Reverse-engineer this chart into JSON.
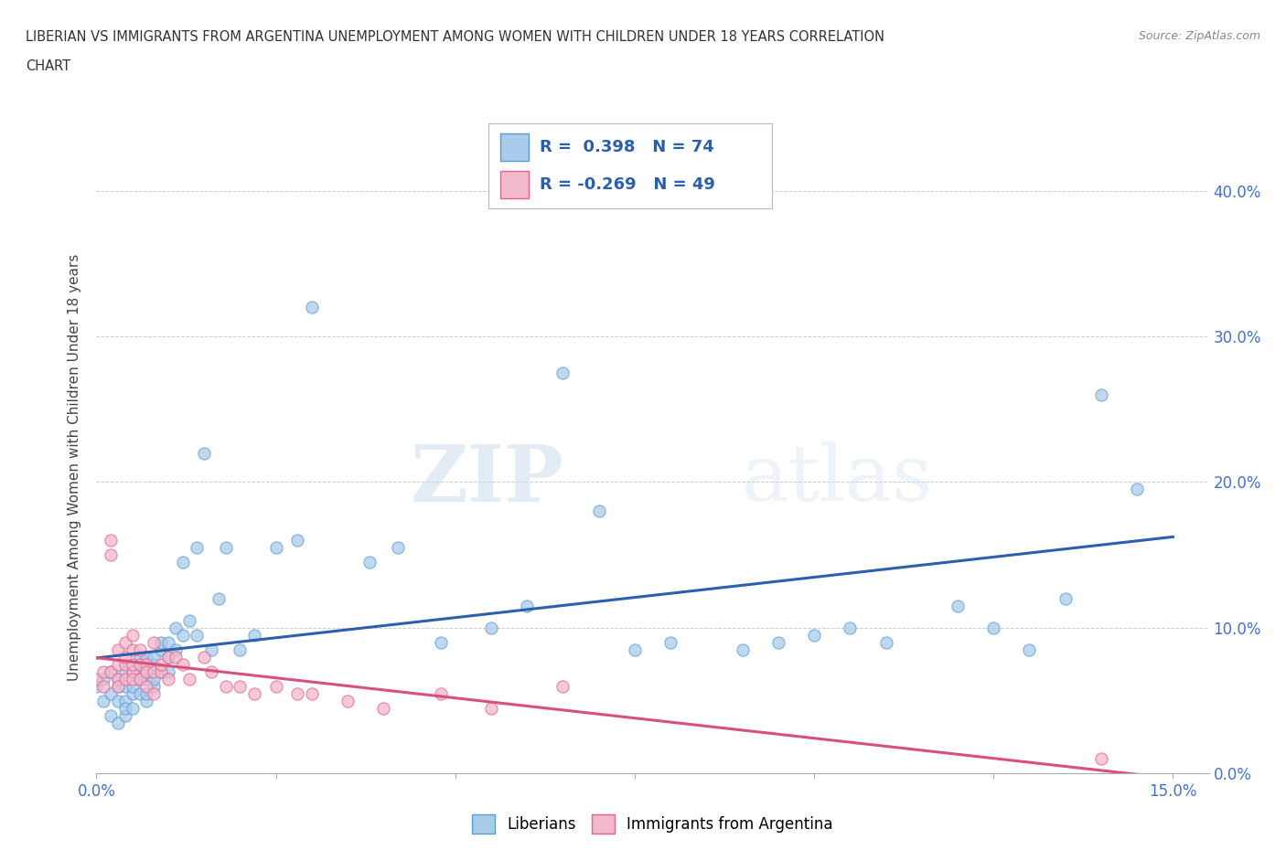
{
  "title_line1": "LIBERIAN VS IMMIGRANTS FROM ARGENTINA UNEMPLOYMENT AMONG WOMEN WITH CHILDREN UNDER 18 YEARS CORRELATION",
  "title_line2": "CHART",
  "source": "Source: ZipAtlas.com",
  "ylabel": "Unemployment Among Women with Children Under 18 years",
  "xlim": [
    0.0,
    0.155
  ],
  "ylim": [
    0.0,
    0.42
  ],
  "xticks": [
    0.0,
    0.025,
    0.05,
    0.075,
    0.1,
    0.125,
    0.15
  ],
  "yticks": [
    0.0,
    0.1,
    0.2,
    0.3,
    0.4
  ],
  "ytick_labels": [
    "0.0%",
    "10.0%",
    "20.0%",
    "30.0%",
    "40.0%"
  ],
  "xtick_labels_show": [
    "0.0%",
    "15.0%"
  ],
  "blue_color": "#A8CCEA",
  "pink_color": "#F2B8CC",
  "blue_edge_color": "#5B9BD5",
  "pink_edge_color": "#E8608A",
  "blue_line_color": "#2E5FAC",
  "pink_line_color": "#D94F7E",
  "blue_R": 0.398,
  "blue_N": 74,
  "pink_R": -0.269,
  "pink_N": 49,
  "watermark_zip": "ZIP",
  "watermark_atlas": "atlas",
  "blue_scatter_x": [
    0.0,
    0.001,
    0.001,
    0.002,
    0.002,
    0.002,
    0.003,
    0.003,
    0.003,
    0.003,
    0.004,
    0.004,
    0.004,
    0.004,
    0.004,
    0.005,
    0.005,
    0.005,
    0.005,
    0.006,
    0.006,
    0.006,
    0.006,
    0.007,
    0.007,
    0.007,
    0.007,
    0.007,
    0.008,
    0.008,
    0.008,
    0.008,
    0.009,
    0.009,
    0.009,
    0.01,
    0.01,
    0.01,
    0.011,
    0.011,
    0.012,
    0.012,
    0.013,
    0.014,
    0.014,
    0.015,
    0.016,
    0.017,
    0.018,
    0.02,
    0.022,
    0.025,
    0.028,
    0.03,
    0.038,
    0.042,
    0.048,
    0.055,
    0.06,
    0.065,
    0.07,
    0.075,
    0.08,
    0.09,
    0.095,
    0.1,
    0.105,
    0.11,
    0.12,
    0.125,
    0.13,
    0.135,
    0.14,
    0.145
  ],
  "blue_scatter_y": [
    0.06,
    0.065,
    0.05,
    0.055,
    0.07,
    0.04,
    0.06,
    0.05,
    0.065,
    0.035,
    0.05,
    0.06,
    0.04,
    0.07,
    0.045,
    0.055,
    0.045,
    0.06,
    0.07,
    0.065,
    0.055,
    0.075,
    0.08,
    0.05,
    0.065,
    0.07,
    0.08,
    0.055,
    0.06,
    0.075,
    0.065,
    0.08,
    0.085,
    0.07,
    0.09,
    0.09,
    0.07,
    0.08,
    0.085,
    0.1,
    0.095,
    0.145,
    0.105,
    0.095,
    0.155,
    0.22,
    0.085,
    0.12,
    0.155,
    0.085,
    0.095,
    0.155,
    0.16,
    0.32,
    0.145,
    0.155,
    0.09,
    0.1,
    0.115,
    0.275,
    0.18,
    0.085,
    0.09,
    0.085,
    0.09,
    0.095,
    0.1,
    0.09,
    0.115,
    0.1,
    0.085,
    0.12,
    0.26,
    0.195
  ],
  "pink_scatter_x": [
    0.0,
    0.001,
    0.001,
    0.002,
    0.002,
    0.002,
    0.003,
    0.003,
    0.003,
    0.003,
    0.004,
    0.004,
    0.004,
    0.004,
    0.005,
    0.005,
    0.005,
    0.005,
    0.005,
    0.006,
    0.006,
    0.006,
    0.007,
    0.007,
    0.007,
    0.008,
    0.008,
    0.008,
    0.009,
    0.009,
    0.01,
    0.01,
    0.011,
    0.012,
    0.013,
    0.015,
    0.016,
    0.018,
    0.02,
    0.022,
    0.025,
    0.028,
    0.03,
    0.035,
    0.04,
    0.048,
    0.055,
    0.065,
    0.14
  ],
  "pink_scatter_y": [
    0.065,
    0.07,
    0.06,
    0.16,
    0.15,
    0.07,
    0.065,
    0.075,
    0.085,
    0.06,
    0.065,
    0.075,
    0.08,
    0.09,
    0.07,
    0.085,
    0.095,
    0.065,
    0.075,
    0.065,
    0.075,
    0.085,
    0.06,
    0.075,
    0.07,
    0.07,
    0.055,
    0.09,
    0.07,
    0.075,
    0.08,
    0.065,
    0.08,
    0.075,
    0.065,
    0.08,
    0.07,
    0.06,
    0.06,
    0.055,
    0.06,
    0.055,
    0.055,
    0.05,
    0.045,
    0.055,
    0.045,
    0.06,
    0.01
  ],
  "background_color": "#FFFFFF",
  "grid_color": "#CCCCCC"
}
